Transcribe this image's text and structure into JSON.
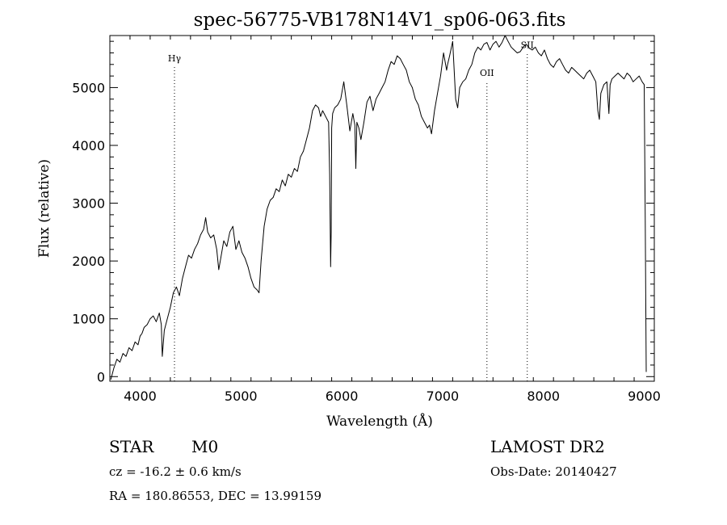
{
  "chart_data": {
    "type": "line",
    "title": "spec-56775-VB178N14V1_sp06-063.fits",
    "xlabel": "Wavelength (Å)",
    "ylabel": "Flux (relative)",
    "xlim": [
      3700,
      9100
    ],
    "ylim": [
      -80,
      5900
    ],
    "xticks": [
      4000,
      5000,
      6000,
      7000,
      8000,
      9000
    ],
    "yticks": [
      0,
      1000,
      2000,
      3000,
      4000,
      5000
    ],
    "grid": false,
    "line_markers": [
      {
        "label": "Hγ",
        "x": 4341,
        "label_y": 5450
      },
      {
        "label": "OII",
        "x": 7440,
        "label_y": 5200
      },
      {
        "label": "SII",
        "x": 7840,
        "label_y": 5680
      }
    ],
    "series": [
      {
        "x": [
          3710,
          3740,
          3770,
          3800,
          3830,
          3860,
          3890,
          3920,
          3950,
          3980,
          4000,
          4020,
          4040,
          4070,
          4100,
          4130,
          4160,
          4190,
          4210,
          4220,
          4240,
          4270,
          4300,
          4330,
          4360,
          4390,
          4420,
          4450,
          4480,
          4510,
          4540,
          4570,
          4600,
          4630,
          4650,
          4670,
          4700,
          4730,
          4760,
          4780,
          4800,
          4830,
          4860,
          4890,
          4920,
          4950,
          4980,
          5010,
          5040,
          5070,
          5100,
          5130,
          5160,
          5180,
          5200,
          5230,
          5260,
          5290,
          5320,
          5350,
          5380,
          5410,
          5440,
          5470,
          5500,
          5530,
          5560,
          5590,
          5620,
          5650,
          5680,
          5710,
          5740,
          5770,
          5790,
          5810,
          5840,
          5870,
          5880,
          5890,
          5895,
          5900,
          5910,
          5930,
          5960,
          5990,
          6020,
          6050,
          6080,
          6110,
          6130,
          6140,
          6150,
          6170,
          6190,
          6220,
          6250,
          6280,
          6310,
          6340,
          6370,
          6400,
          6430,
          6460,
          6490,
          6520,
          6550,
          6580,
          6610,
          6640,
          6670,
          6700,
          6730,
          6760,
          6790,
          6820,
          6850,
          6870,
          6890,
          6920,
          6950,
          6980,
          7010,
          7040,
          7050,
          7070,
          7100,
          7130,
          7150,
          7170,
          7200,
          7230,
          7260,
          7290,
          7320,
          7350,
          7380,
          7410,
          7440,
          7470,
          7500,
          7530,
          7560,
          7590,
          7620,
          7650,
          7680,
          7710,
          7740,
          7770,
          7800,
          7830,
          7860,
          7890,
          7920,
          7950,
          7980,
          8010,
          8040,
          8070,
          8100,
          8130,
          8160,
          8190,
          8220,
          8250,
          8280,
          8310,
          8340,
          8370,
          8400,
          8430,
          8460,
          8490,
          8520,
          8540,
          8555,
          8570,
          8600,
          8630,
          8650,
          8662,
          8680,
          8710,
          8740,
          8770,
          8800,
          8830,
          8860,
          8890,
          8920,
          8950,
          8980,
          9000,
          9010,
          9020
        ],
        "values": [
          -50,
          150,
          300,
          250,
          400,
          350,
          500,
          450,
          600,
          550,
          700,
          750,
          850,
          900,
          1000,
          1050,
          950,
          1100,
          900,
          350,
          800,
          1000,
          1200,
          1450,
          1550,
          1400,
          1700,
          1900,
          2100,
          2050,
          2200,
          2300,
          2450,
          2550,
          2750,
          2500,
          2400,
          2450,
          2200,
          1850,
          2050,
          2350,
          2250,
          2500,
          2600,
          2200,
          2350,
          2150,
          2050,
          1900,
          1700,
          1550,
          1500,
          1450,
          2000,
          2600,
          2900,
          3050,
          3100,
          3250,
          3200,
          3400,
          3300,
          3500,
          3450,
          3600,
          3550,
          3800,
          3900,
          4100,
          4300,
          4600,
          4700,
          4650,
          4500,
          4600,
          4500,
          4400,
          3500,
          1900,
          2500,
          4300,
          4550,
          4650,
          4700,
          4800,
          5100,
          4700,
          4250,
          4550,
          4350,
          3600,
          4400,
          4300,
          4100,
          4400,
          4750,
          4850,
          4600,
          4800,
          4900,
          5000,
          5100,
          5300,
          5450,
          5400,
          5550,
          5500,
          5400,
          5300,
          5100,
          5000,
          4800,
          4700,
          4500,
          4400,
          4300,
          4350,
          4200,
          4600,
          4900,
          5200,
          5600,
          5300,
          5400,
          5550,
          5800,
          4800,
          4650,
          5000,
          5100,
          5150,
          5300,
          5400,
          5600,
          5700,
          5650,
          5750,
          5780,
          5650,
          5750,
          5800,
          5700,
          5780,
          5900,
          5800,
          5700,
          5650,
          5600,
          5620,
          5700,
          5750,
          5680,
          5650,
          5700,
          5600,
          5550,
          5650,
          5500,
          5400,
          5350,
          5450,
          5500,
          5400,
          5300,
          5250,
          5350,
          5300,
          5250,
          5200,
          5150,
          5250,
          5300,
          5200,
          5100,
          4600,
          4450,
          4900,
          5050,
          5100,
          4550,
          5050,
          5150,
          5200,
          5250,
          5200,
          5150,
          5250,
          5200,
          5100,
          5150,
          5200,
          5100,
          5050,
          2700,
          80
        ]
      }
    ]
  },
  "footer": {
    "object_class": "STAR",
    "subclass": "M0",
    "survey": "LAMOST DR2",
    "redshift": "cz = -16.2 ± 0.6 km/s",
    "obs_date": "Obs-Date: 20140427",
    "coordinates": "RA = 180.86553, DEC =  13.99159"
  }
}
